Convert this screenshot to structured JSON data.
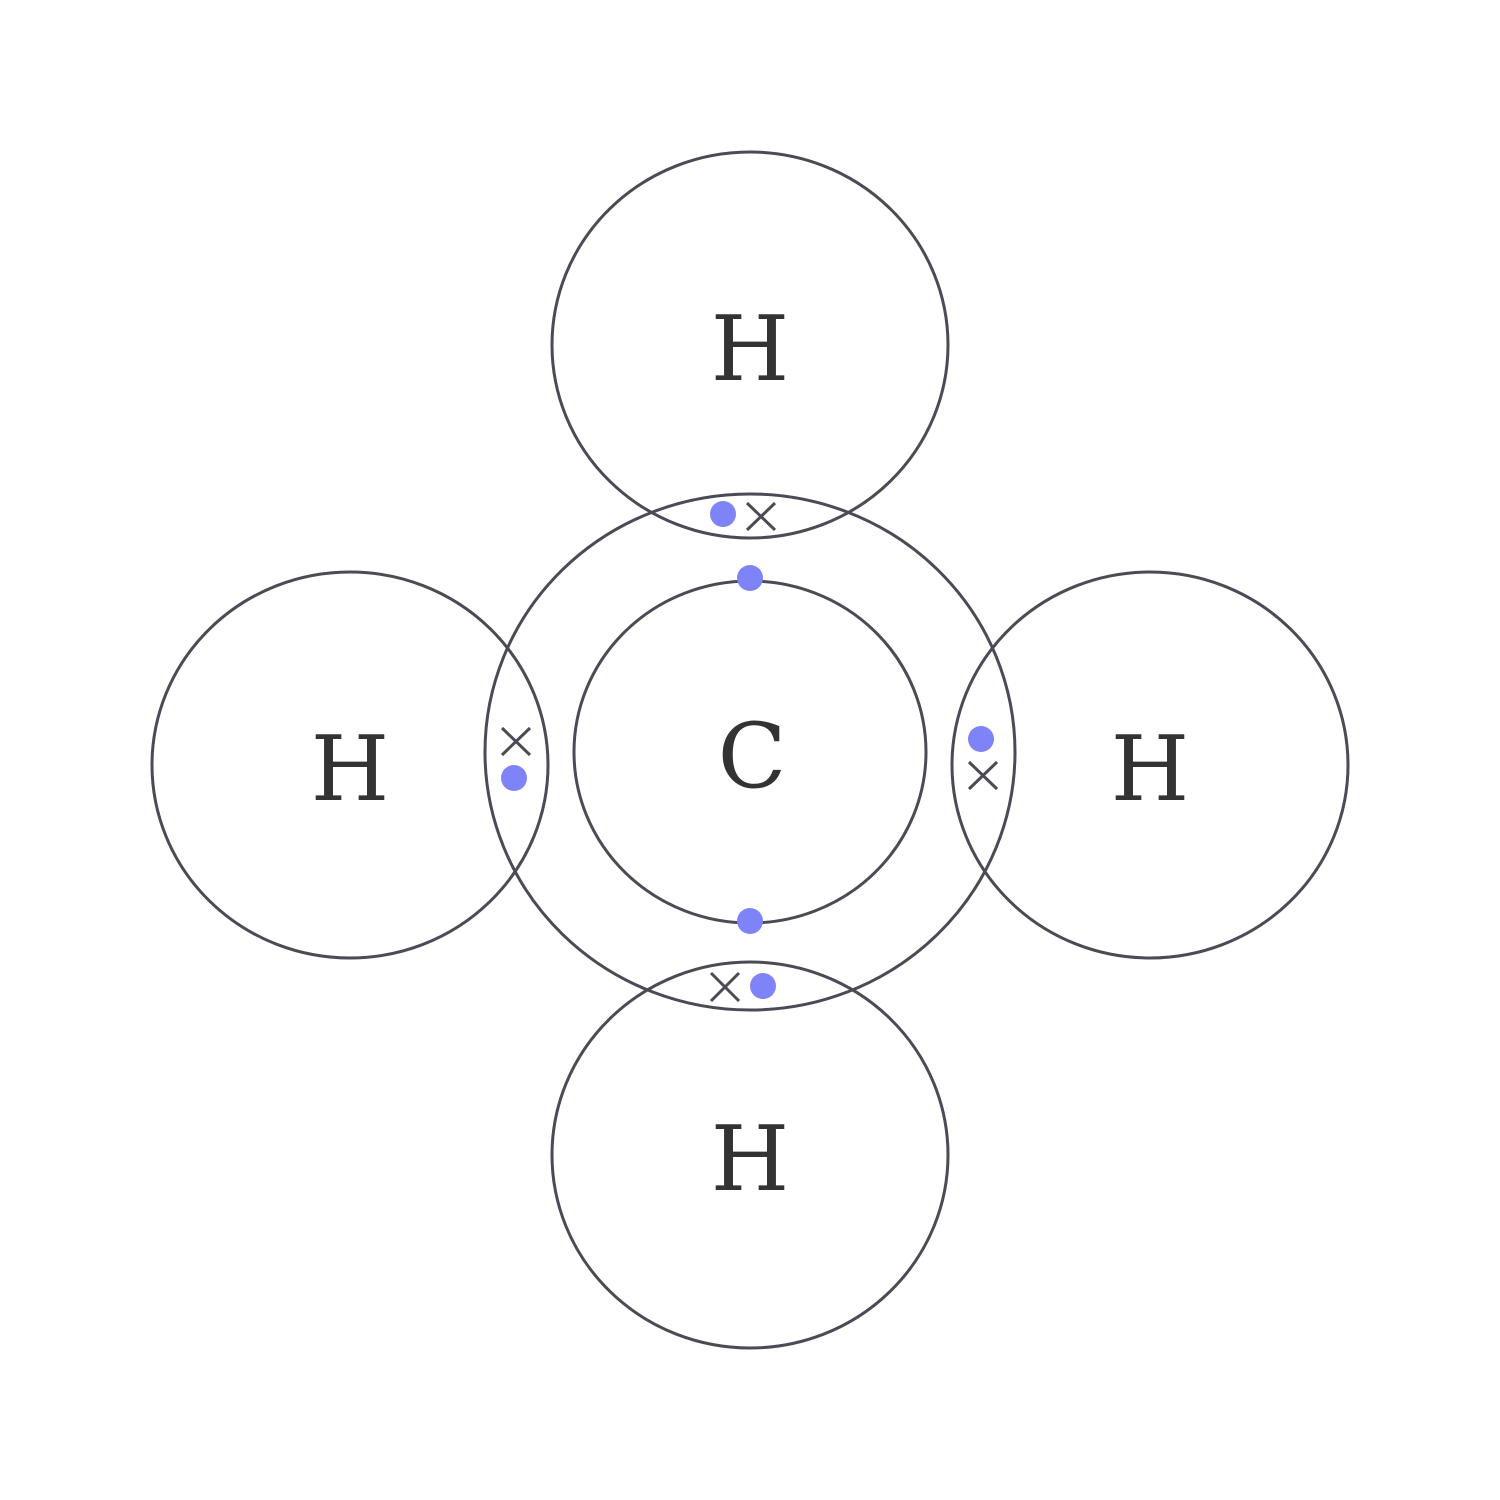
{
  "diagram": {
    "colors": {
      "stroke": "#4a4b55",
      "text": "#333333",
      "electron_dot": "#7e84f7",
      "background": "#ffffff"
    },
    "atoms": {
      "carbon": {
        "symbol": "C"
      },
      "hydrogen_top": {
        "symbol": "H"
      },
      "hydrogen_left": {
        "symbol": "H"
      },
      "hydrogen_right": {
        "symbol": "H"
      },
      "hydrogen_bottom": {
        "symbol": "H"
      }
    },
    "electron_markers": {
      "carbon_dot": "dot",
      "hydrogen_cross": "cross"
    }
  }
}
